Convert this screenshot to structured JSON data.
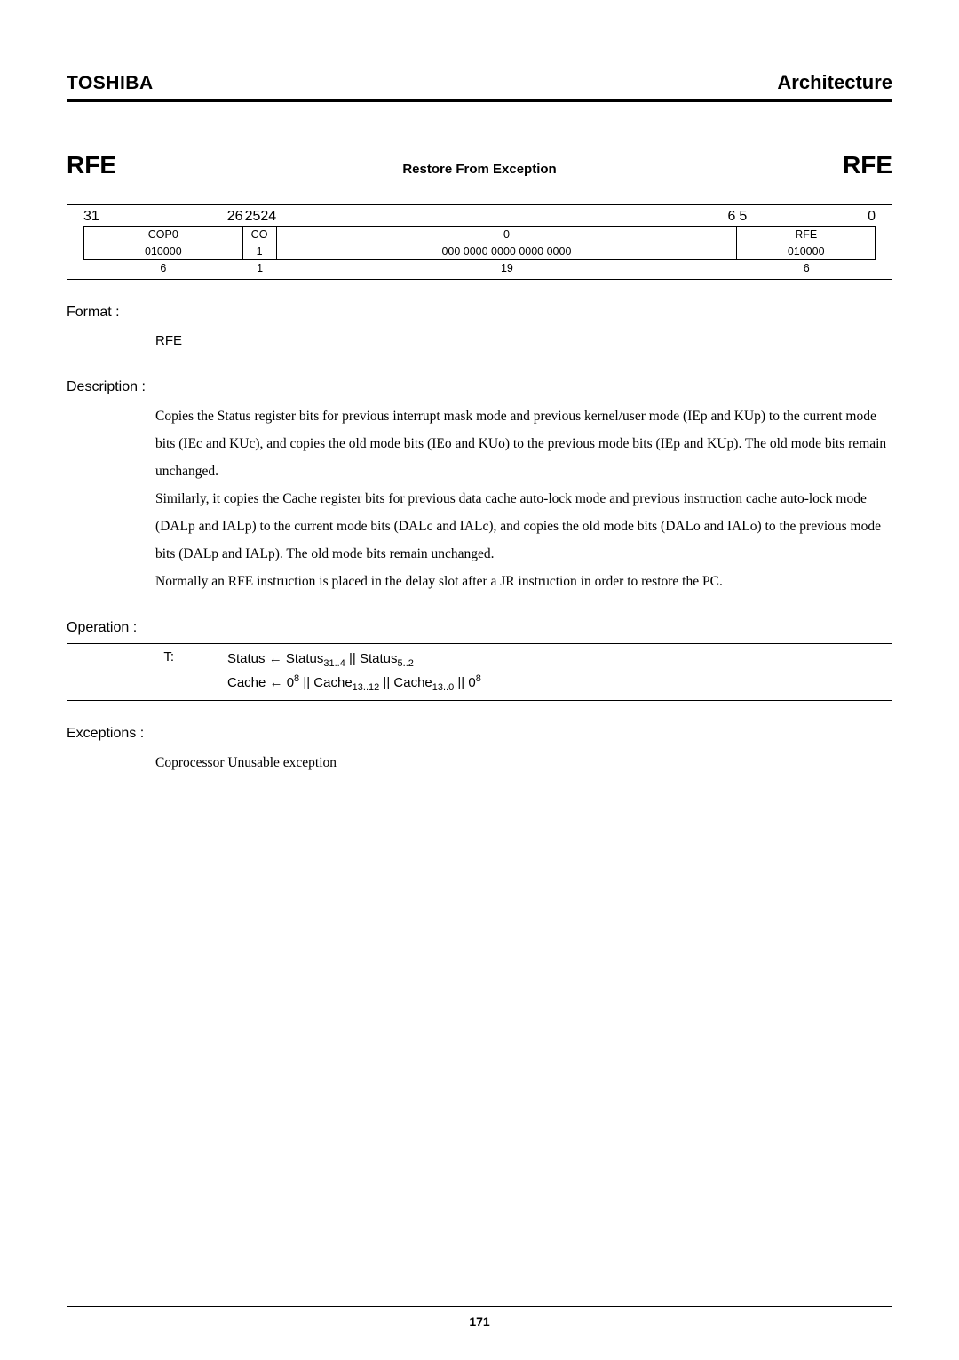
{
  "header": {
    "brand": "TOSHIBA",
    "arch": "Architecture"
  },
  "title": {
    "left": "RFE",
    "center": "Restore From Exception",
    "right": "RFE"
  },
  "bitfield": {
    "bit_labels": {
      "b31": "31",
      "b26": "26",
      "b25": "25",
      "b24": "24",
      "b6": "6",
      "b5": "5",
      "b0": "0"
    },
    "row1": {
      "c1": "COP0",
      "c2": "CO",
      "c3": "0",
      "c4": "RFE"
    },
    "row2": {
      "c1": "010000",
      "c2": "1",
      "c3": "000 0000 0000 0000 0000",
      "c4": "010000"
    },
    "widths": {
      "w1": "6",
      "w2": "1",
      "w3": "19",
      "w4": "6"
    }
  },
  "format": {
    "label": "Format :",
    "body": "RFE"
  },
  "description": {
    "label": "Description :",
    "body": "Copies    the Status register bits for previous interrupt mask mode and previous kernel/user mode (IEp and KUp) to the current mode bits (IEc and KUc), and copies the old mode bits (IEo and KUo) to the previous mode bits (IEp and KUp).    The old mode bits remain unchanged.\nSimilarly, it copies the Cache register bits for previous data cache auto-lock mode and previous instruction cache auto-lock mode (DALp and IALp) to the current mode bits (DALc and IALc), and copies the old mode bits (DALo and IALo) to the previous mode bits (DALp and IALp).    The old mode bits remain unchanged.\nNormally an RFE instruction is placed in the delay slot after a JR instruction in order to restore the PC."
  },
  "operation": {
    "label": "Operation :",
    "t": "T:",
    "line1_a": "Status ← Status",
    "line1_sub1": "31..4",
    "line1_b": " || Status",
    "line1_sub2": "5..2",
    "line2_a": "Cache ← 0",
    "line2_sup1": "8",
    "line2_b": " || Cache",
    "line2_sub1": "13..12",
    "line2_c": " || Cache",
    "line2_sub2": "13..0",
    "line2_d": " || 0",
    "line2_sup2": "8"
  },
  "exceptions": {
    "label": "Exceptions :",
    "body": "Coprocessor Unusable exception"
  },
  "page": "171",
  "widths": {
    "col1": 180,
    "col2": 38,
    "col3": 520,
    "col4": 156
  }
}
